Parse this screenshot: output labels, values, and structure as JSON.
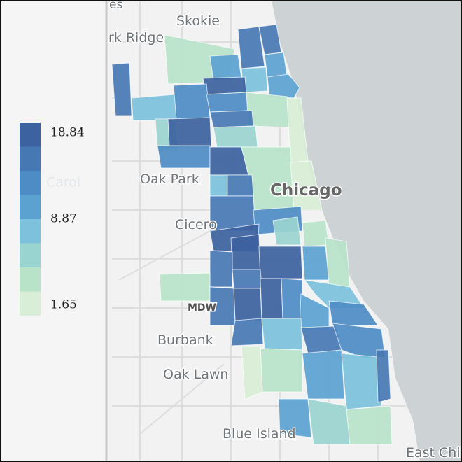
{
  "legend": {
    "labels": [
      "18.84",
      "Carol",
      "8.87",
      "1.65"
    ],
    "colors": [
      "#3d62a0",
      "#4678b4",
      "#4d8cc4",
      "#5ca2d1",
      "#7dc1dc",
      "#9ad4d0",
      "#b8e3c9",
      "#d8eed6"
    ]
  },
  "map": {
    "places": [
      "es",
      "Skokie",
      "rk Ridge",
      "Oak Park",
      "Chicago",
      "Cicero",
      "MDW",
      "Burbank",
      "Oak Lawn",
      "Blue Island",
      "East Chi"
    ]
  }
}
